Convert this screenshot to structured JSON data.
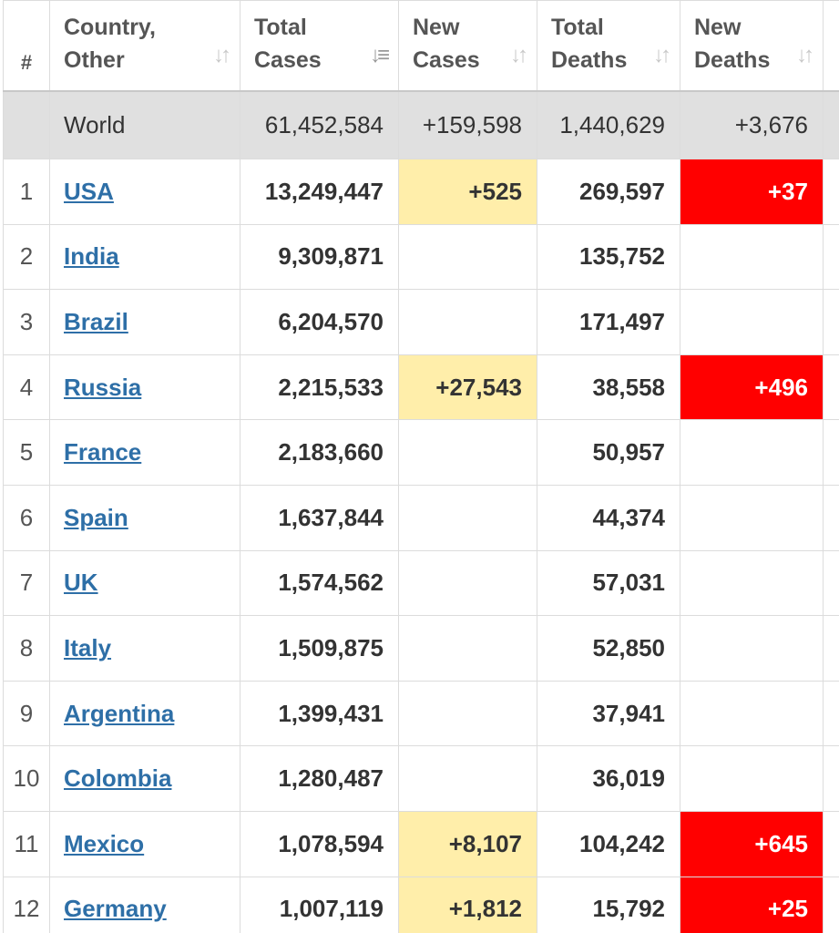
{
  "headers": {
    "num": "#",
    "country_l1": "Country,",
    "country_l2": "Other",
    "total_cases_l1": "Total",
    "total_cases_l2": "Cases",
    "new_cases_l1": "New",
    "new_cases_l2": "Cases",
    "total_deaths_l1": "Total",
    "total_deaths_l2": "Deaths",
    "new_deaths_l1": "New",
    "new_deaths_l2": "Deaths"
  },
  "world": {
    "country": "World",
    "total_cases": "61,452,584",
    "new_cases": "+159,598",
    "total_deaths": "1,440,629",
    "new_deaths": "+3,676"
  },
  "rows": [
    {
      "num": "1",
      "country": "USA",
      "total_cases": "13,249,447",
      "new_cases": "+525",
      "total_deaths": "269,597",
      "new_deaths": "+37"
    },
    {
      "num": "2",
      "country": "India",
      "total_cases": "9,309,871",
      "new_cases": "",
      "total_deaths": "135,752",
      "new_deaths": ""
    },
    {
      "num": "3",
      "country": "Brazil",
      "total_cases": "6,204,570",
      "new_cases": "",
      "total_deaths": "171,497",
      "new_deaths": ""
    },
    {
      "num": "4",
      "country": "Russia",
      "total_cases": "2,215,533",
      "new_cases": "+27,543",
      "total_deaths": "38,558",
      "new_deaths": "+496"
    },
    {
      "num": "5",
      "country": "France",
      "total_cases": "2,183,660",
      "new_cases": "",
      "total_deaths": "50,957",
      "new_deaths": ""
    },
    {
      "num": "6",
      "country": "Spain",
      "total_cases": "1,637,844",
      "new_cases": "",
      "total_deaths": "44,374",
      "new_deaths": ""
    },
    {
      "num": "7",
      "country": "UK",
      "total_cases": "1,574,562",
      "new_cases": "",
      "total_deaths": "57,031",
      "new_deaths": ""
    },
    {
      "num": "8",
      "country": "Italy",
      "total_cases": "1,509,875",
      "new_cases": "",
      "total_deaths": "52,850",
      "new_deaths": ""
    },
    {
      "num": "9",
      "country": "Argentina",
      "total_cases": "1,399,431",
      "new_cases": "",
      "total_deaths": "37,941",
      "new_deaths": ""
    },
    {
      "num": "10",
      "country": "Colombia",
      "total_cases": "1,280,487",
      "new_cases": "",
      "total_deaths": "36,019",
      "new_deaths": ""
    },
    {
      "num": "11",
      "country": "Mexico",
      "total_cases": "1,078,594",
      "new_cases": "+8,107",
      "total_deaths": "104,242",
      "new_deaths": "+645"
    },
    {
      "num": "12",
      "country": "Germany",
      "total_cases": "1,007,119",
      "new_cases": "+1,812",
      "total_deaths": "15,792",
      "new_deaths": "+25"
    }
  ],
  "icons": {
    "sort": "sort-arrows-icon",
    "sort_active": "sort-descending-icon"
  },
  "colors": {
    "new_cases_highlight": "#ffeeaa",
    "new_deaths_highlight": "#ff0000",
    "link": "#2e6fa7",
    "world_row": "#e0e0e0"
  }
}
